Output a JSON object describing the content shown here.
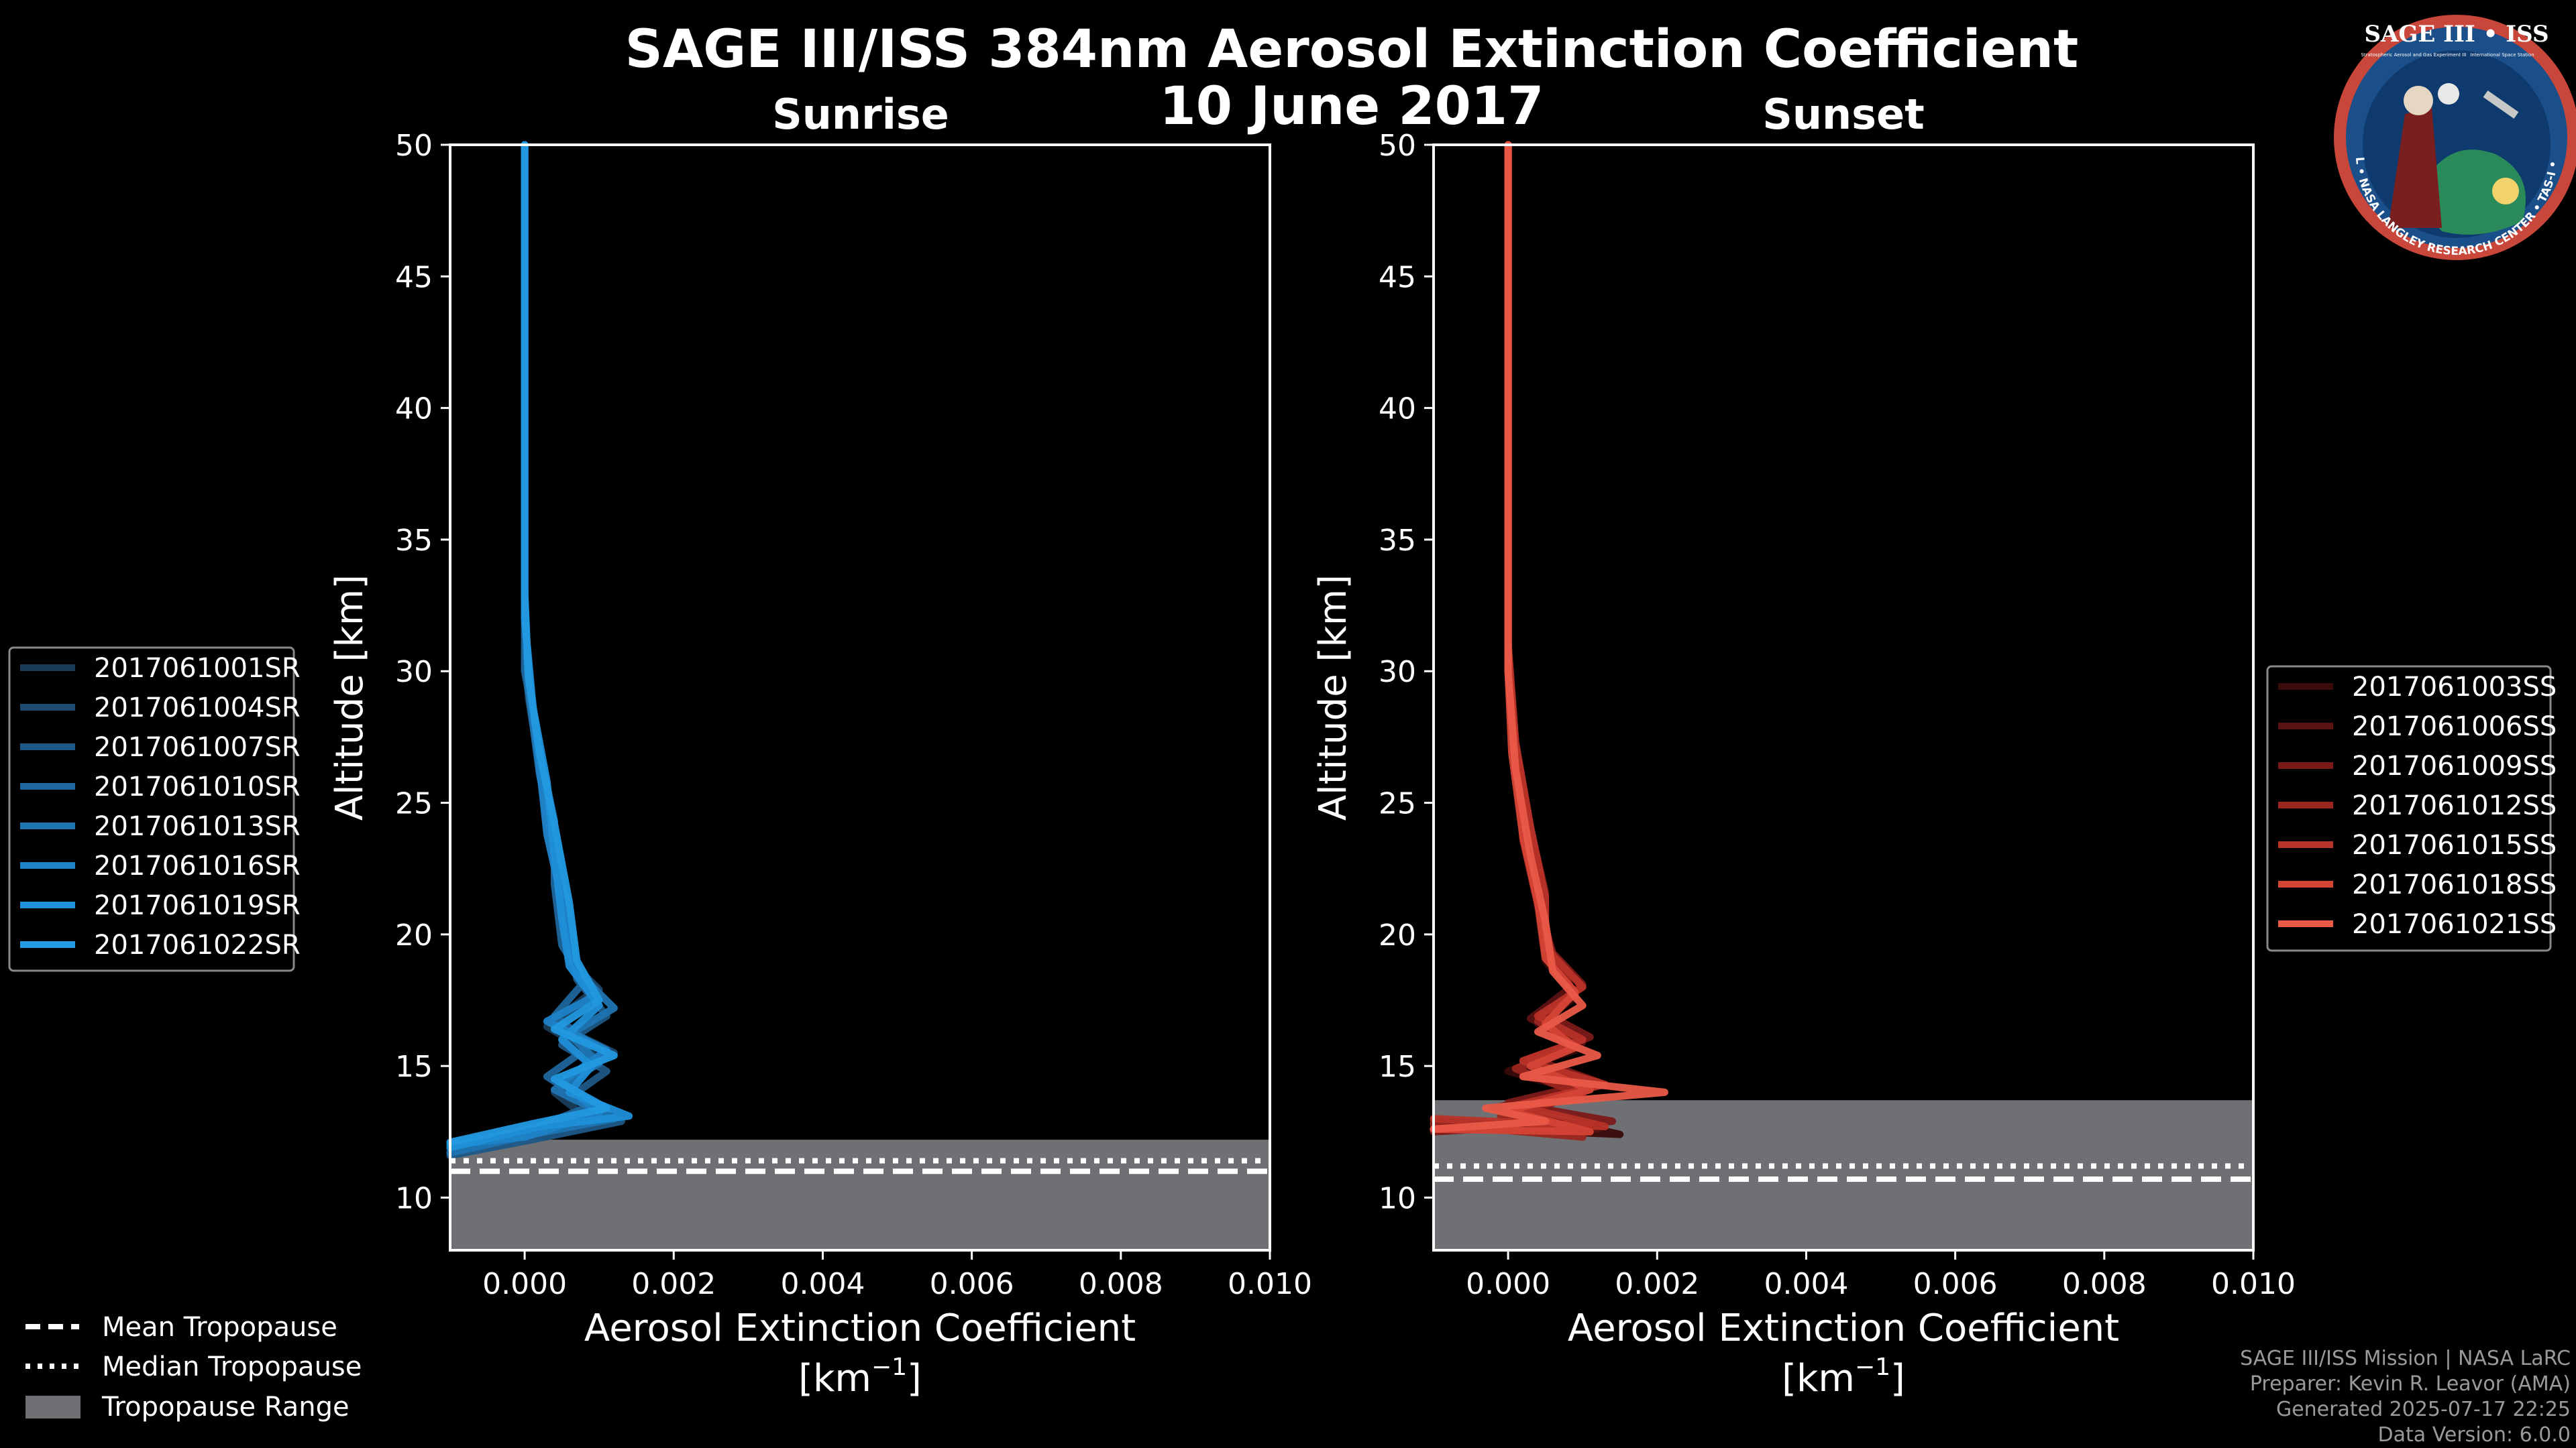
{
  "title_line1": "SAGE III/ISS 384nm Aerosol Extinction Coefficient",
  "title_line2": "10 June 2017",
  "logo": {
    "text": "SAGE III • ISS",
    "ring_text": "BALL • NASA LANGLEY RESEARCH CENTER • TAS-I • ESA",
    "caption_left": "Stratospheric Aerosol and Gas Experiment III",
    "caption_right": "International Space Station"
  },
  "colors": {
    "background": "#000000",
    "tropopause_fill": "#6e7073",
    "sunrise": [
      "#1a3c5a",
      "#1c4a70",
      "#1e5886",
      "#1f669c",
      "#1f74b2",
      "#1f82c7",
      "#1f8fd8",
      "#2299e0"
    ],
    "sunset": [
      "#3a0b0b",
      "#5a1212",
      "#7a1a18",
      "#9a2620",
      "#b83328",
      "#d54536",
      "#ea5a48"
    ]
  },
  "chart_data": [
    {
      "type": "line",
      "title": "Sunrise",
      "xlabel": "Aerosol Extinction Coefficient",
      "xlabel_unit": "[km",
      "xlabel_unit_sup": "−1",
      "xlabel_unit_close": "]",
      "ylabel": "Altitude [km]",
      "xlim": [
        -0.001,
        0.01
      ],
      "ylim": [
        8,
        50
      ],
      "xticks": [
        0.0,
        0.002,
        0.004,
        0.006,
        0.008,
        0.01
      ],
      "xtick_labels": [
        "0.000",
        "0.002",
        "0.004",
        "0.006",
        "0.008",
        "0.010"
      ],
      "yticks": [
        10,
        15,
        20,
        25,
        30,
        35,
        40,
        45,
        50
      ],
      "tropopause": {
        "mean": 11.0,
        "median": 11.4,
        "range": [
          8,
          12.2
        ]
      },
      "legend_position": "left",
      "series": [
        {
          "name": "2017061001SR",
          "points": [
            [
              -0.001,
              11.8
            ],
            [
              0.0,
              12.3
            ],
            [
              0.0008,
              13.1
            ],
            [
              0.0004,
              14.0
            ],
            [
              0.001,
              15.3
            ],
            [
              0.0003,
              16.5
            ],
            [
              0.0009,
              17.8
            ],
            [
              0.0006,
              19.2
            ],
            [
              0.0005,
              21.5
            ],
            [
              0.0003,
              24.0
            ],
            [
              0.0002,
              26.5
            ],
            [
              5e-05,
              29.0
            ],
            [
              0.0,
              32
            ],
            [
              0.0,
              40
            ],
            [
              0.0,
              50
            ]
          ]
        },
        {
          "name": "2017061004SR",
          "points": [
            [
              -0.001,
              12.0
            ],
            [
              0.0002,
              12.6
            ],
            [
              0.0011,
              13.3
            ],
            [
              0.0005,
              14.3
            ],
            [
              0.0012,
              15.5
            ],
            [
              0.0004,
              16.6
            ],
            [
              0.001,
              17.9
            ],
            [
              0.0006,
              19.0
            ],
            [
              0.0006,
              21.0
            ],
            [
              0.0004,
              23.5
            ],
            [
              0.0002,
              26.8
            ],
            [
              5e-05,
              29.5
            ],
            [
              0.0,
              33
            ],
            [
              0.0,
              40
            ],
            [
              0.0,
              50
            ]
          ]
        },
        {
          "name": "2017061007SR",
          "points": [
            [
              -0.001,
              11.6
            ],
            [
              0.0001,
              12.2
            ],
            [
              0.0013,
              12.9
            ],
            [
              0.0006,
              13.8
            ],
            [
              0.0011,
              14.8
            ],
            [
              0.0005,
              15.8
            ],
            [
              0.0011,
              16.9
            ],
            [
              0.0007,
              18.3
            ],
            [
              0.0006,
              20.5
            ],
            [
              0.0005,
              22.6
            ],
            [
              0.0003,
              25.5
            ],
            [
              0.0001,
              28.5
            ],
            [
              0.0,
              32
            ],
            [
              0.0,
              40
            ],
            [
              0.0,
              50
            ]
          ]
        },
        {
          "name": "2017061010SR",
          "points": [
            [
              -0.001,
              12.1
            ],
            [
              0.0,
              12.5
            ],
            [
              0.0009,
              13.5
            ],
            [
              0.0003,
              14.6
            ],
            [
              0.0009,
              15.8
            ],
            [
              0.0004,
              16.9
            ],
            [
              0.0008,
              18.2
            ],
            [
              0.0005,
              19.6
            ],
            [
              0.0004,
              21.9
            ],
            [
              0.0004,
              24.3
            ],
            [
              0.0002,
              27.0
            ],
            [
              0.0,
              30.0
            ],
            [
              0.0,
              34
            ],
            [
              0.0,
              42
            ],
            [
              0.0,
              50
            ]
          ]
        },
        {
          "name": "2017061013SR",
          "points": [
            [
              -0.001,
              11.7
            ],
            [
              0.0001,
              12.4
            ],
            [
              0.0012,
              13.0
            ],
            [
              0.0004,
              14.1
            ],
            [
              0.001,
              15.1
            ],
            [
              0.0006,
              16.2
            ],
            [
              0.0012,
              17.2
            ],
            [
              0.0007,
              18.6
            ],
            [
              0.0006,
              20.8
            ],
            [
              0.0004,
              23.1
            ],
            [
              0.0002,
              26.1
            ],
            [
              5e-05,
              29.3
            ],
            [
              0.0,
              33
            ],
            [
              0.0,
              41
            ],
            [
              0.0,
              50
            ]
          ]
        },
        {
          "name": "2017061016SR",
          "points": [
            [
              -0.001,
              12.0
            ],
            [
              0.0,
              12.3
            ],
            [
              0.001,
              13.2
            ],
            [
              0.0005,
              14.4
            ],
            [
              0.0011,
              15.6
            ],
            [
              0.0003,
              16.7
            ],
            [
              0.0009,
              17.6
            ],
            [
              0.0006,
              19.4
            ],
            [
              0.0005,
              21.3
            ],
            [
              0.0003,
              23.8
            ],
            [
              0.0002,
              26.4
            ],
            [
              0.0001,
              29.0
            ],
            [
              0.0,
              32
            ],
            [
              0.0,
              40
            ],
            [
              0.0,
              50
            ]
          ]
        },
        {
          "name": "2017061019SR",
          "points": [
            [
              -0.001,
              11.9
            ],
            [
              0.0002,
              12.7
            ],
            [
              0.0014,
              13.1
            ],
            [
              0.0006,
              14.0
            ],
            [
              0.0009,
              15.0
            ],
            [
              0.0005,
              16.0
            ],
            [
              0.001,
              17.3
            ],
            [
              0.0006,
              18.8
            ],
            [
              0.0005,
              20.6
            ],
            [
              0.0004,
              23.0
            ],
            [
              0.0003,
              25.8
            ],
            [
              0.0001,
              28.8
            ],
            [
              0.0,
              32
            ],
            [
              0.0,
              41
            ],
            [
              0.0,
              50
            ]
          ]
        },
        {
          "name": "2017061022SR",
          "points": [
            [
              -0.001,
              12.1
            ],
            [
              0.0001,
              12.8
            ],
            [
              0.0011,
              13.4
            ],
            [
              0.0004,
              14.5
            ],
            [
              0.0012,
              15.4
            ],
            [
              0.0004,
              16.4
            ],
            [
              0.001,
              17.5
            ],
            [
              0.0007,
              19.0
            ],
            [
              0.0006,
              21.2
            ],
            [
              0.0004,
              24.2
            ],
            [
              0.0002,
              26.9
            ],
            [
              5e-05,
              29.8
            ],
            [
              0.0,
              33
            ],
            [
              0.0,
              41
            ],
            [
              0.0,
              50
            ]
          ]
        }
      ]
    },
    {
      "type": "line",
      "title": "Sunset",
      "xlabel": "Aerosol Extinction Coefficient",
      "xlabel_unit": "[km",
      "xlabel_unit_sup": "−1",
      "xlabel_unit_close": "]",
      "ylabel": "Altitude [km]",
      "xlim": [
        -0.001,
        0.01
      ],
      "ylim": [
        8,
        50
      ],
      "xticks": [
        0.0,
        0.002,
        0.004,
        0.006,
        0.008,
        0.01
      ],
      "xtick_labels": [
        "0.000",
        "0.002",
        "0.004",
        "0.006",
        "0.008",
        "0.010"
      ],
      "yticks": [
        10,
        15,
        20,
        25,
        30,
        35,
        40,
        45,
        50
      ],
      "tropopause": {
        "mean": 10.7,
        "median": 11.2,
        "range": [
          8,
          13.7
        ]
      },
      "legend_position": "right",
      "series": [
        {
          "name": "2017061003SS",
          "points": [
            [
              -0.001,
              12.7
            ],
            [
              0.0015,
              12.4
            ],
            [
              0.0002,
              13.2
            ],
            [
              0.001,
              14.0
            ],
            [
              0.0,
              14.8
            ],
            [
              0.0009,
              15.6
            ],
            [
              0.0004,
              16.6
            ],
            [
              0.0009,
              17.6
            ],
            [
              0.0005,
              19.0
            ],
            [
              0.0004,
              21.0
            ],
            [
              0.0003,
              23.5
            ],
            [
              0.0001,
              26.5
            ],
            [
              0.0,
              30
            ],
            [
              0.0,
              40
            ],
            [
              0.0,
              50
            ]
          ]
        },
        {
          "name": "2017061006SS",
          "points": [
            [
              -0.001,
              12.9
            ],
            [
              0.0012,
              12.6
            ],
            [
              -0.0002,
              13.4
            ],
            [
              0.0011,
              14.2
            ],
            [
              0.0002,
              15.1
            ],
            [
              0.001,
              15.9
            ],
            [
              0.0003,
              16.8
            ],
            [
              0.0008,
              17.9
            ],
            [
              0.0006,
              19.3
            ],
            [
              0.0004,
              21.3
            ],
            [
              0.0002,
              23.8
            ],
            [
              0.0001,
              27.0
            ],
            [
              0.0,
              31
            ],
            [
              0.0,
              40
            ],
            [
              0.0,
              50
            ]
          ]
        },
        {
          "name": "2017061009SS",
          "points": [
            [
              -0.001,
              12.5
            ],
            [
              0.0014,
              12.9
            ],
            [
              0.0,
              13.6
            ],
            [
              0.0012,
              14.4
            ],
            [
              0.0003,
              15.3
            ],
            [
              0.0011,
              16.1
            ],
            [
              0.0005,
              17.0
            ],
            [
              0.001,
              18.1
            ],
            [
              0.0005,
              19.6
            ],
            [
              0.0005,
              21.6
            ],
            [
              0.0003,
              24.0
            ],
            [
              0.0001,
              27.2
            ],
            [
              0.0,
              31
            ],
            [
              0.0,
              41
            ],
            [
              0.0,
              50
            ]
          ]
        },
        {
          "name": "2017061012SS",
          "points": [
            [
              -0.001,
              12.8
            ],
            [
              0.001,
              12.3
            ],
            [
              -0.0001,
              13.1
            ],
            [
              0.001,
              13.9
            ],
            [
              0.0001,
              14.9
            ],
            [
              0.0009,
              15.8
            ],
            [
              0.0004,
              16.7
            ],
            [
              0.0009,
              17.7
            ],
            [
              0.0006,
              19.2
            ],
            [
              0.0004,
              21.1
            ],
            [
              0.0002,
              23.6
            ],
            [
              0.0001,
              26.8
            ],
            [
              0.0,
              30
            ],
            [
              0.0,
              40
            ],
            [
              0.0,
              50
            ]
          ]
        },
        {
          "name": "2017061015SS",
          "points": [
            [
              -0.001,
              13.0
            ],
            [
              0.0013,
              12.7
            ],
            [
              0.0001,
              13.5
            ],
            [
              0.0013,
              14.3
            ],
            [
              0.0002,
              15.2
            ],
            [
              0.001,
              16.0
            ],
            [
              0.0004,
              16.9
            ],
            [
              0.001,
              18.0
            ],
            [
              0.0005,
              19.5
            ],
            [
              0.0005,
              21.4
            ],
            [
              0.0003,
              24.1
            ],
            [
              0.0001,
              27.3
            ],
            [
              0.0,
              31
            ],
            [
              0.0,
              41
            ],
            [
              0.0,
              50
            ]
          ]
        },
        {
          "name": "2017061018SS",
          "points": [
            [
              -0.001,
              12.6
            ],
            [
              0.0011,
              12.5
            ],
            [
              0.0,
              13.3
            ],
            [
              0.0011,
              14.1
            ],
            [
              0.0003,
              15.0
            ],
            [
              0.0009,
              15.7
            ],
            [
              0.0005,
              16.6
            ],
            [
              0.0009,
              17.8
            ],
            [
              0.0005,
              19.1
            ],
            [
              0.0004,
              21.2
            ],
            [
              0.0002,
              23.7
            ],
            [
              5e-05,
              26.9
            ],
            [
              0.0,
              30
            ],
            [
              0.0,
              40
            ],
            [
              0.0,
              50
            ]
          ]
        },
        {
          "name": "2017061021SS",
          "points": [
            [
              -0.001,
              12.6
            ],
            [
              0.0005,
              12.9
            ],
            [
              -0.0003,
              13.4
            ],
            [
              0.0021,
              14.0
            ],
            [
              0.0002,
              14.6
            ],
            [
              0.0012,
              15.4
            ],
            [
              0.0004,
              16.3
            ],
            [
              0.001,
              17.3
            ],
            [
              0.0006,
              18.6
            ],
            [
              0.0005,
              20.5
            ],
            [
              0.0003,
              23.0
            ],
            [
              0.0001,
              26.3
            ],
            [
              0.0,
              30
            ],
            [
              0.0,
              40
            ],
            [
              0.0,
              50
            ]
          ]
        }
      ]
    }
  ],
  "bottom_legend": {
    "mean": "Mean Tropopause",
    "median": "Median Tropopause",
    "range": "Tropopause Range"
  },
  "footer": [
    "SAGE III/ISS Mission | NASA LaRC",
    "Preparer: Kevin R. Leavor (AMA)",
    "Generated 2025-07-17 22:25",
    "Data Version: 6.0.0"
  ]
}
